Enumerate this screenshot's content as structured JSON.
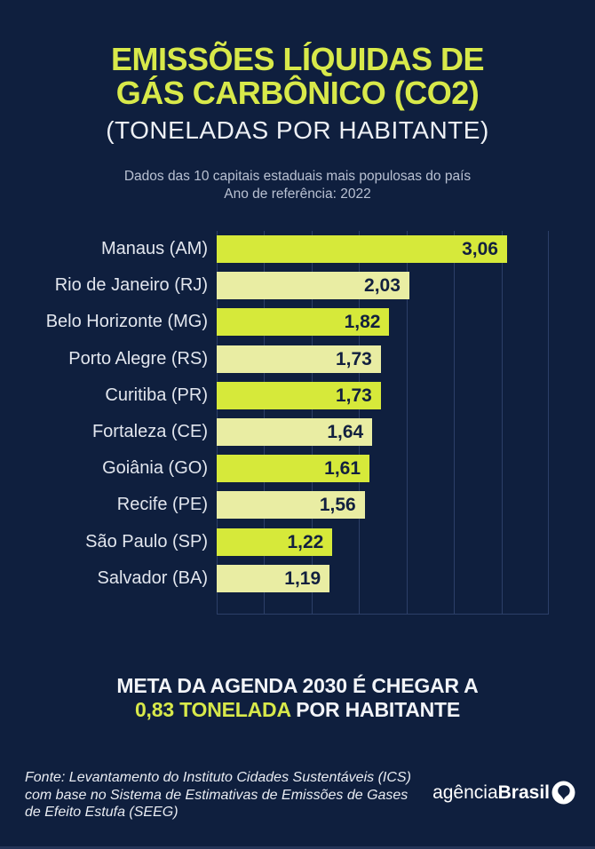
{
  "header": {
    "title_line1": "EMISSÕES LÍQUIDAS DE",
    "title_line2": "GÁS CARBÔNICO (CO2)",
    "title_sub": "(TONELADAS POR HABITANTE)",
    "subtitle_line1": "Dados das 10 capitais estaduais mais populosas do país",
    "subtitle_line2": "Ano de referência: 2022"
  },
  "chart_data": {
    "type": "bar",
    "orientation": "horizontal",
    "title": "Emissões líquidas de gás carbônico (CO2) - toneladas por habitante",
    "xlabel": "",
    "ylabel": "",
    "categories": [
      "Manaus (AM)",
      "Rio de Janeiro (RJ)",
      "Belo Horizonte (MG)",
      "Porto Alegre (RS)",
      "Curitiba (PR)",
      "Fortaleza (CE)",
      "Goiânia (GO)",
      "Recife (PE)",
      "São Paulo (SP)",
      "Salvador (BA)"
    ],
    "values": [
      3.06,
      2.03,
      1.82,
      1.73,
      1.73,
      1.64,
      1.61,
      1.56,
      1.22,
      1.19
    ],
    "value_labels": [
      "3,06",
      "2,03",
      "1,82",
      "1,73",
      "1,73",
      "1,64",
      "1,61",
      "1,56",
      "1,22",
      "1,19"
    ],
    "xlim": [
      0,
      3.5
    ],
    "gridline_step": 0.5,
    "grid": true,
    "legend": false,
    "bar_colors_alternate": [
      "#d6e93a",
      "#e9eda3"
    ]
  },
  "meta": {
    "line1": "META DA AGENDA 2030 É CHEGAR A",
    "highlight": "0,83 TONELADA",
    "line2_rest": " POR HABITANTE"
  },
  "footer": {
    "source_line1": "Fonte: Levantamento do Instituto Cidades Sustentáveis (ICS)",
    "source_line2": "com base no Sistema de Estimativas de Emissões de Gases",
    "source_line3": "de Efeito Estufa (SEEG)",
    "logo_text_light": "agência",
    "logo_text_bold": "Brasil"
  },
  "colors": {
    "background": "#0f1f3e",
    "accent_green": "#d8e94a",
    "bar_bright": "#d6e93a",
    "bar_pale": "#e9eda3",
    "gridline": "#2c3f68",
    "label_text": "#e2e6ee",
    "subtitle_text": "#b9c1d2",
    "value_text": "#12203f"
  }
}
